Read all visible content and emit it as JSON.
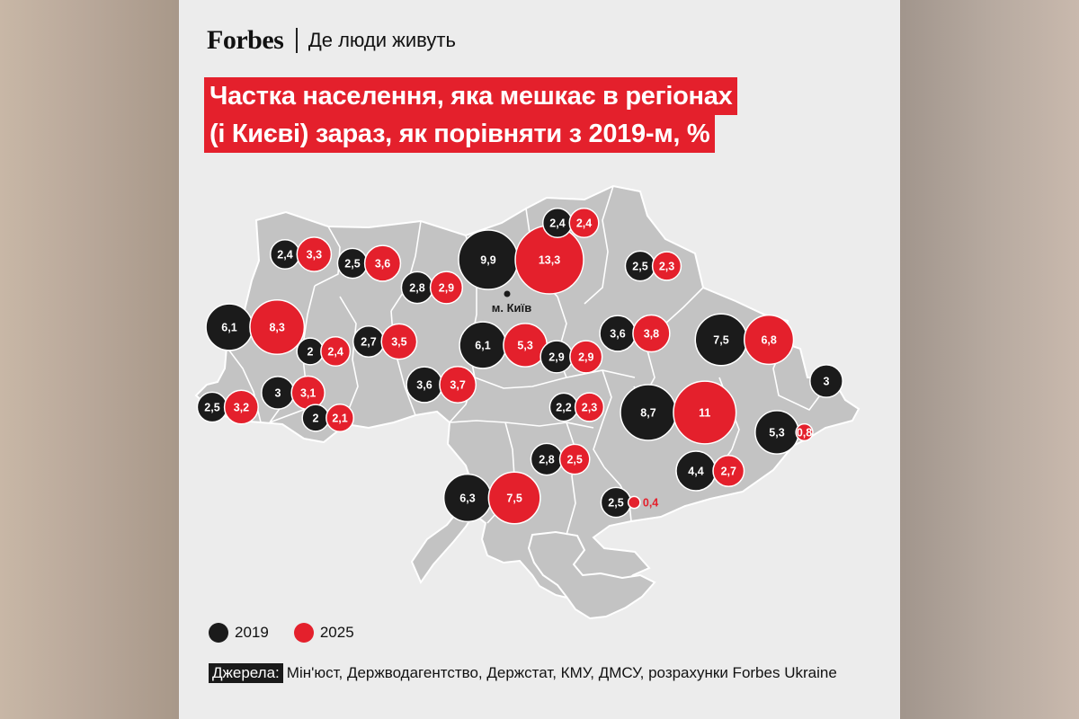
{
  "header": {
    "logo": "Forbes",
    "subtitle": "Де люди живуть"
  },
  "title_lines": [
    "Частка населення, яка мешкає в регіонах",
    "(і Києві) зараз, як порівняти з 2019-м, %"
  ],
  "city_label": "м. Київ",
  "legend": [
    {
      "label": "2019",
      "color": "#1b1b1b"
    },
    {
      "label": "2025",
      "color": "#e4202c"
    }
  ],
  "sources": {
    "label": "Джерела:",
    "text": "Мін'юст, Держводагентство, Держстат, КМУ, ДМСУ, розрахунки Forbes Ukraine"
  },
  "colors": {
    "black": "#1b1b1b",
    "red": "#e4202c",
    "map": "#c3c3c3",
    "border": "#ffffff",
    "brand_red": "#e4202c"
  },
  "regions": [
    {
      "id": "volyn",
      "v2019": "2,4",
      "v2025": "3,3"
    },
    {
      "id": "rivne",
      "v2019": "2,5",
      "v2025": "3,6"
    },
    {
      "id": "zhytomyr",
      "v2019": "2,8",
      "v2025": "2,9"
    },
    {
      "id": "kyiv-city",
      "v2019": "9,9",
      "v2025": "13,3"
    },
    {
      "id": "chernihiv",
      "v2019": "2,4",
      "v2025": "2,4"
    },
    {
      "id": "sumy",
      "v2019": "2,5",
      "v2025": "2,3"
    },
    {
      "id": "lviv",
      "v2019": "6,1",
      "v2025": "8,3"
    },
    {
      "id": "ternopil",
      "v2019": "2",
      "v2025": "2,4"
    },
    {
      "id": "khmelnytskyi",
      "v2019": "2,7",
      "v2025": "3,5"
    },
    {
      "id": "kyiv-oblast",
      "v2019": "6,1",
      "v2025": "5,3"
    },
    {
      "id": "cherkasy",
      "v2019": "2,9",
      "v2025": "2,9"
    },
    {
      "id": "poltava",
      "v2019": "3,6",
      "v2025": "3,8"
    },
    {
      "id": "kharkiv",
      "v2019": "7,5",
      "v2025": "6,8"
    },
    {
      "id": "ivano-frankivsk",
      "v2019": "3",
      "v2025": "3,1"
    },
    {
      "id": "vinnytsia",
      "v2019": "3,6",
      "v2025": "3,7"
    },
    {
      "id": "zakarpattia",
      "v2019": "2,5",
      "v2025": "3,2"
    },
    {
      "id": "chernivtsi",
      "v2019": "2",
      "v2025": "2,1"
    },
    {
      "id": "kirovohrad",
      "v2019": "2,2",
      "v2025": "2,3"
    },
    {
      "id": "dnipropetrovsk",
      "v2019": "8,7",
      "v2025": "11"
    },
    {
      "id": "luhansk",
      "v2019": "3",
      "v2025": ""
    },
    {
      "id": "donetsk",
      "v2019": "5,3",
      "v2025": "0,8"
    },
    {
      "id": "mykolaiv",
      "v2019": "2,8",
      "v2025": "2,5"
    },
    {
      "id": "zaporizhzhia",
      "v2019": "4,4",
      "v2025": "2,7"
    },
    {
      "id": "odesa",
      "v2019": "6,3",
      "v2025": "7,5"
    },
    {
      "id": "kherson",
      "v2019": "2,5",
      "v2025": "0,4"
    }
  ]
}
